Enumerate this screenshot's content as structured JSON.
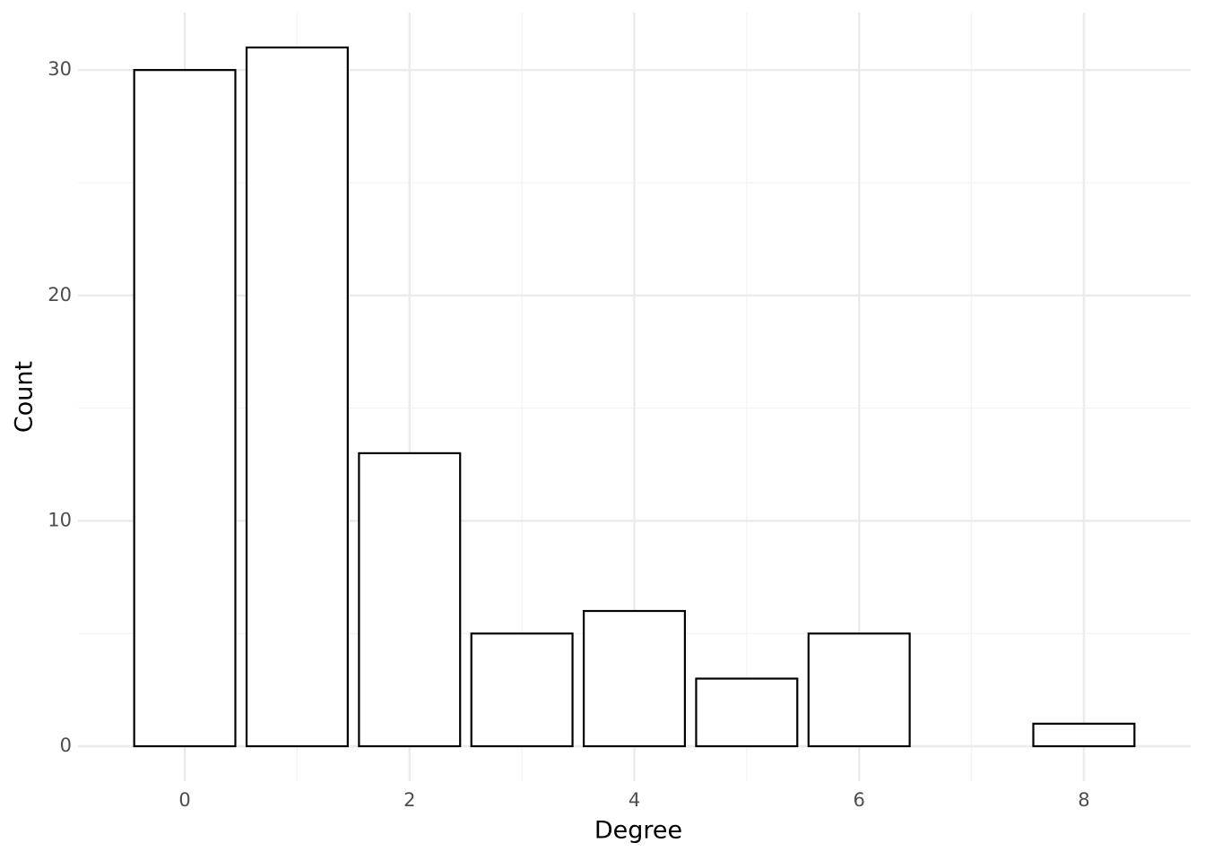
{
  "chart_data": {
    "type": "bar",
    "x_label": "Degree",
    "y_label": "Count",
    "x": [
      0,
      1,
      2,
      3,
      4,
      5,
      6,
      8
    ],
    "values": [
      30,
      31,
      13,
      5,
      6,
      3,
      5,
      1
    ],
    "bar_width": 0.9,
    "color": "#ffffff",
    "edge_color": "#000000",
    "xlim": [
      -0.95,
      8.95
    ],
    "xticks": [
      0,
      2,
      4,
      6,
      8
    ],
    "ylim": [
      -1.55,
      32.55
    ],
    "yticks": [
      0,
      10,
      20,
      30
    ],
    "grid": true,
    "minor_grid": true
  }
}
